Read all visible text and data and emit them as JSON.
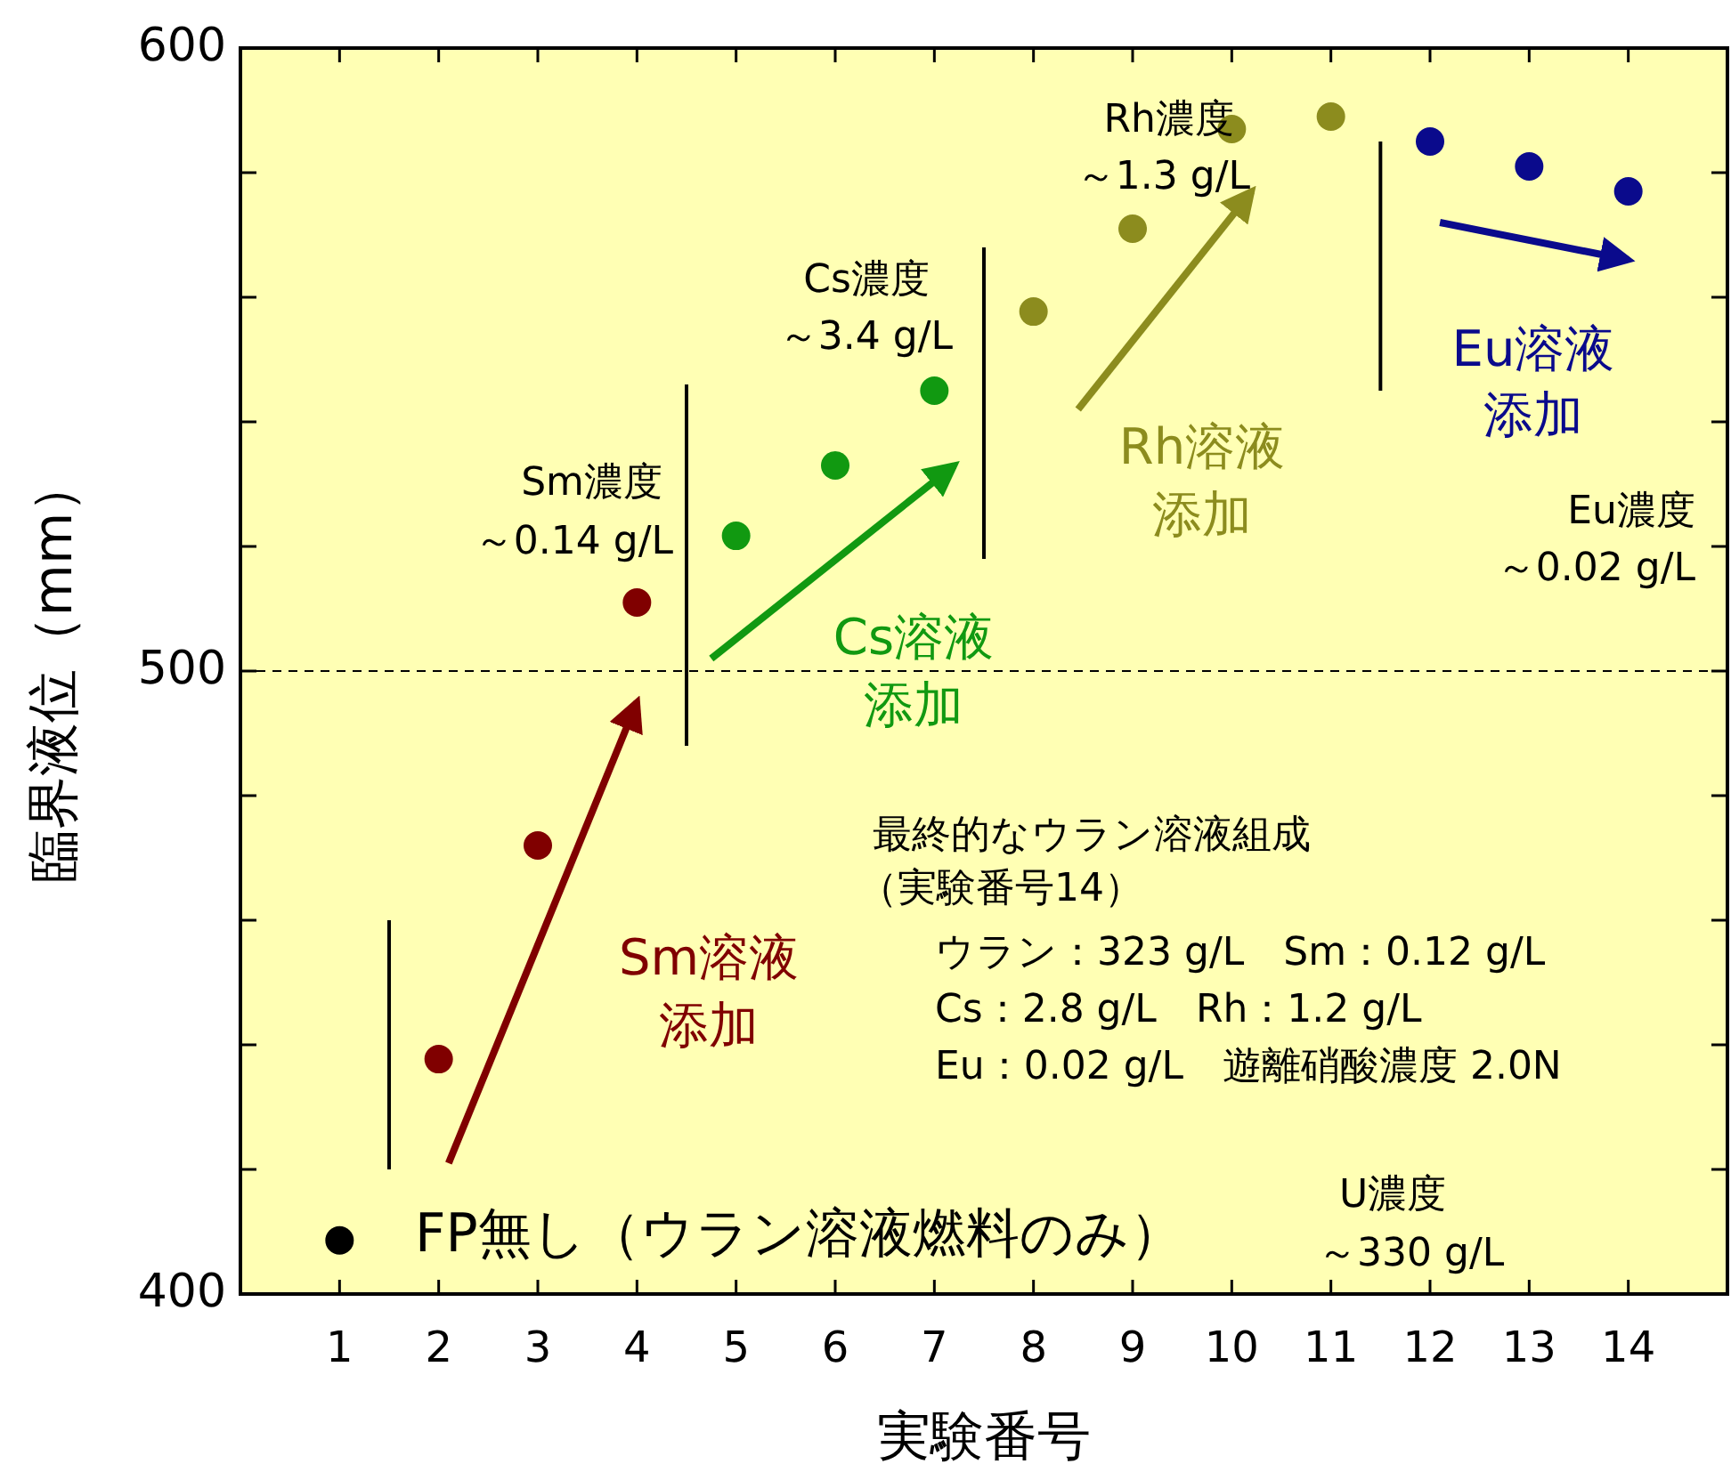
{
  "chart_data": {
    "type": "scatter",
    "xlabel": "実験番号",
    "ylabel": "臨界液位（mm）",
    "xlim": [
      0,
      15
    ],
    "xticks": [
      1,
      2,
      3,
      4,
      5,
      6,
      7,
      8,
      9,
      10,
      11,
      12,
      13,
      14
    ],
    "ylim": [
      400,
      600
    ],
    "yticks": [
      400,
      {
        "value": 420,
        "label": null
      },
      {
        "value": 440,
        "label": null
      },
      {
        "value": 460,
        "label": null
      },
      {
        "value": 480,
        "label": null
      },
      500,
      {
        "value": 520,
        "label": null
      },
      {
        "value": 540,
        "label": null
      },
      {
        "value": 560,
        "label": null
      },
      {
        "value": 580,
        "label": null
      },
      600
    ],
    "marker": "circle",
    "grid": false,
    "series": [
      {
        "color": "#000000",
        "x": [
          1
        ],
        "values": [
          408.6
        ]
      },
      {
        "color": "#800000",
        "x": [
          2,
          3,
          4
        ],
        "values": [
          437.7,
          472,
          511
        ]
      },
      {
        "color": "#119911",
        "x": [
          5,
          6,
          7
        ],
        "values": [
          521.7,
          533,
          545
        ]
      },
      {
        "color": "#8c8c1e",
        "x": [
          8,
          9,
          10,
          11
        ],
        "values": [
          557.7,
          571,
          587,
          589
        ]
      },
      {
        "color": "#0a0a8c",
        "x": [
          12,
          13,
          14
        ],
        "values": [
          585,
          581,
          577
        ]
      }
    ],
    "ref_lines": [
      {
        "axis": "y",
        "value": 500,
        "line_style": "dashed",
        "color": "#000000"
      },
      {
        "axis": "x",
        "value": 1.5,
        "color": "#000000"
      },
      {
        "axis": "x",
        "value": 4.5,
        "color": "#000000"
      },
      {
        "axis": "x",
        "value": 7.5,
        "color": "#000000"
      },
      {
        "axis": "x",
        "value": 11.5,
        "color": "#000000"
      }
    ],
    "annotations": [
      "FP無し（ウラン溶液燃料のみ）",
      "U濃度",
      "～330 g/L",
      "Sm濃度",
      "～0.14 g/L",
      "Cs濃度",
      "～3.4 g/L",
      "Rh濃度",
      "～1.3 g/L",
      "Eu濃度",
      "～0.02 g/L",
      "Sm溶液",
      "添加",
      "Cs溶液",
      "添加",
      "Rh溶液",
      "添加",
      "Eu溶液",
      "添加",
      "最終的なウラン溶液組成",
      "（実験番号14）",
      "ウラン：323 g/L　Sm：0.12 g/L",
      "Cs：2.8 g/L　Rh：1.2 g/L",
      "Eu：0.02 g/L　遊離硝酸濃度 2.0N"
    ]
  }
}
